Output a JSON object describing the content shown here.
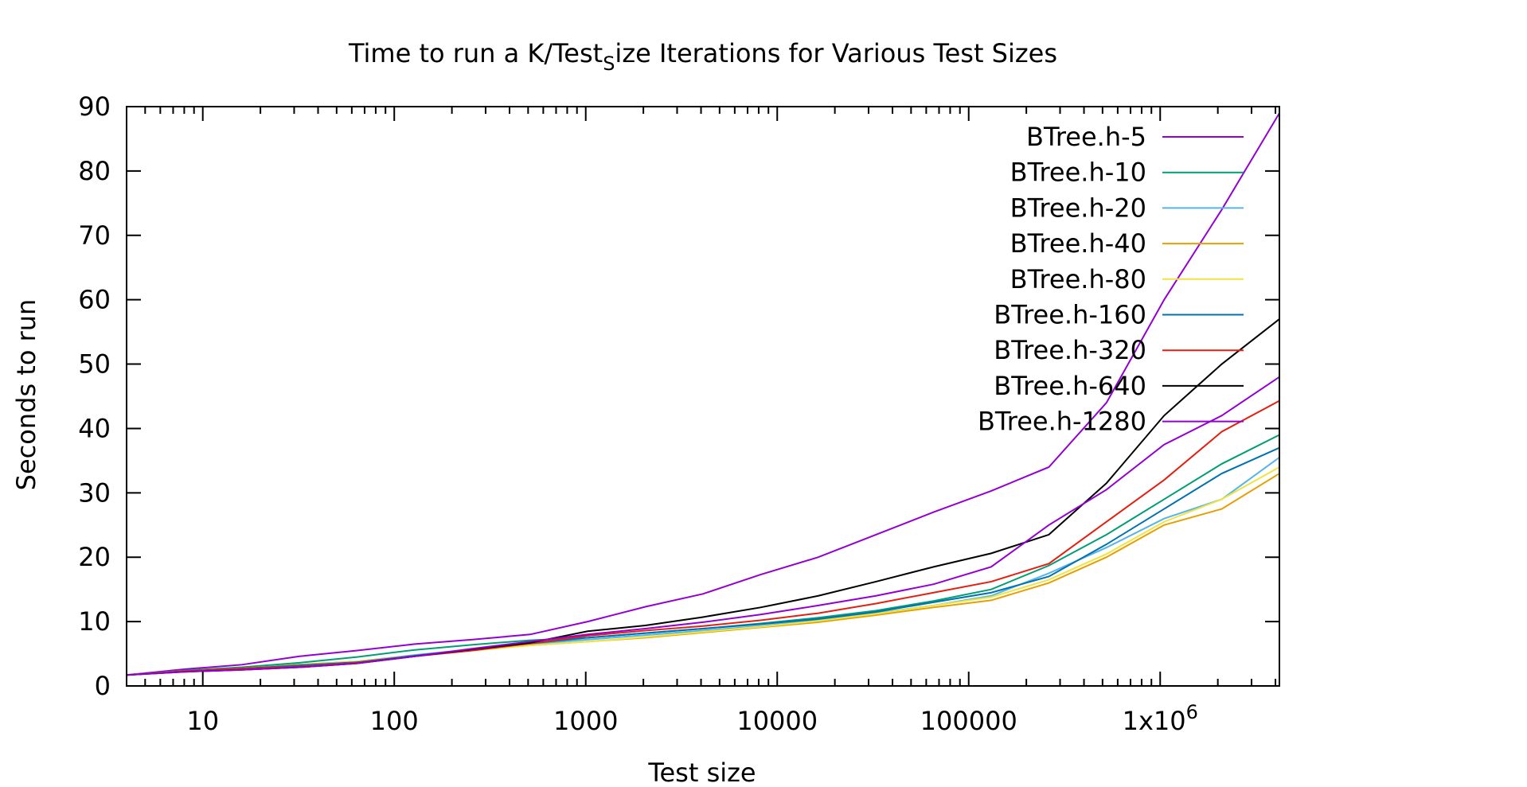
{
  "chart_data": {
    "type": "line",
    "title": {
      "main": "Time to run a K/Test",
      "subscript": "S",
      "rest": "ize Iterations for Various Test Sizes"
    },
    "xlabel": "Test size",
    "ylabel": "Seconds to run",
    "xscale": "log",
    "xlim": [
      4,
      4194304
    ],
    "ylim": [
      0,
      90
    ],
    "x_ticks": [
      {
        "value": 10,
        "label": "10"
      },
      {
        "value": 100,
        "label": "100"
      },
      {
        "value": 1000,
        "label": "1000"
      },
      {
        "value": 10000,
        "label": "10000"
      },
      {
        "value": 100000,
        "label": "100000"
      },
      {
        "value": 1000000,
        "label": "1x10",
        "sup": "6"
      }
    ],
    "y_ticks": [
      0,
      10,
      20,
      30,
      40,
      50,
      60,
      70,
      80,
      90
    ],
    "legend_position": "top-right",
    "grid": false,
    "x": [
      4,
      8,
      16,
      32,
      64,
      128,
      256,
      512,
      1024,
      2048,
      4096,
      8192,
      16384,
      32768,
      65536,
      131072,
      262144,
      524288,
      1048576,
      2097152,
      4194304
    ],
    "series": [
      {
        "name": "BTree.h-5",
        "color": "#9400d3",
        "values": [
          1.7,
          2.6,
          3.3,
          4.6,
          5.5,
          6.5,
          7.2,
          8.0,
          10.0,
          12.3,
          14.3,
          17.3,
          20.0,
          23.5,
          27.0,
          30.3,
          34.0,
          44.0,
          60.0,
          74.0,
          89.0
        ]
      },
      {
        "name": "BTree.h-10",
        "color": "#009e73",
        "values": [
          1.7,
          2.4,
          2.9,
          3.6,
          4.5,
          5.6,
          6.4,
          7.1,
          7.5,
          8.2,
          8.9,
          9.7,
          10.6,
          11.7,
          13.2,
          15.0,
          18.7,
          23.5,
          29.0,
          34.5,
          39.0
        ]
      },
      {
        "name": "BTree.h-20",
        "color": "#56b4e9",
        "values": [
          1.7,
          2.3,
          2.7,
          3.3,
          3.8,
          4.8,
          5.7,
          6.5,
          7.2,
          7.9,
          8.6,
          9.3,
          10.2,
          11.3,
          12.5,
          14.0,
          17.5,
          21.5,
          26.0,
          29.0,
          35.5
        ]
      },
      {
        "name": "BTree.h-40",
        "color": "#e69f00",
        "values": [
          1.7,
          2.3,
          2.7,
          3.3,
          3.8,
          4.7,
          5.6,
          6.3,
          6.9,
          7.5,
          8.3,
          9.1,
          9.9,
          11.0,
          12.2,
          13.3,
          16.0,
          20.0,
          25.0,
          27.5,
          33.0
        ]
      },
      {
        "name": "BTree.h-80",
        "color": "#f0e442",
        "values": [
          1.7,
          2.3,
          2.7,
          3.2,
          3.8,
          4.7,
          5.5,
          6.3,
          6.9,
          7.6,
          8.4,
          9.2,
          10.1,
          11.2,
          12.5,
          13.8,
          16.5,
          20.5,
          25.5,
          29.0,
          34.0
        ]
      },
      {
        "name": "BTree.h-160",
        "color": "#0072b2",
        "values": [
          1.7,
          2.3,
          2.7,
          3.2,
          3.7,
          4.7,
          5.7,
          6.6,
          7.5,
          8.2,
          8.9,
          9.6,
          10.4,
          11.5,
          13.0,
          14.5,
          17.0,
          22.0,
          27.5,
          33.0,
          37.0
        ]
      },
      {
        "name": "BTree.h-320",
        "color": "#e51e10",
        "values": [
          1.7,
          2.3,
          2.7,
          3.0,
          3.6,
          4.6,
          5.5,
          6.6,
          7.8,
          8.6,
          9.3,
          10.2,
          11.3,
          12.8,
          14.5,
          16.2,
          19.0,
          25.5,
          32.0,
          39.5,
          44.3
        ]
      },
      {
        "name": "BTree.h-640",
        "color": "#000000",
        "values": [
          1.7,
          2.2,
          2.5,
          2.9,
          3.5,
          4.6,
          5.7,
          6.7,
          8.5,
          9.4,
          10.7,
          12.2,
          14.0,
          16.2,
          18.5,
          20.6,
          23.5,
          31.5,
          42.0,
          50.0,
          57.0
        ]
      },
      {
        "name": "BTree.h-1280",
        "color": "#9400d3",
        "values": [
          1.7,
          2.2,
          2.5,
          2.9,
          3.5,
          4.6,
          5.8,
          6.9,
          8.0,
          8.9,
          9.9,
          11.1,
          12.5,
          14.0,
          15.8,
          18.5,
          25.0,
          30.5,
          37.5,
          42.0,
          48.0
        ]
      }
    ]
  }
}
